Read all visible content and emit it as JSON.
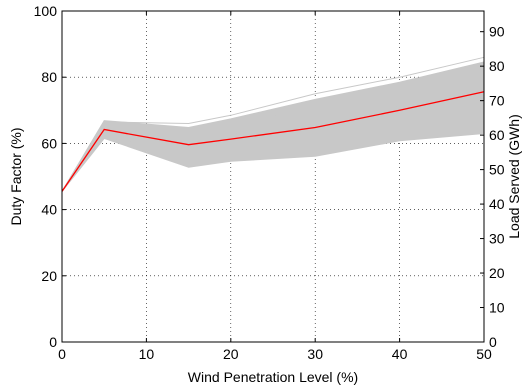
{
  "chart_data": {
    "type": "line",
    "xlabel": "Wind Penetration Level (%)",
    "ylabel": "Duty Factor (%)",
    "y2label": "Load Served (GWh)",
    "xlim": [
      0,
      50
    ],
    "ylim": [
      0,
      100
    ],
    "y2lim": [
      0,
      96
    ],
    "xticks": [
      0,
      10,
      20,
      30,
      40,
      50
    ],
    "yticks": [
      0,
      20,
      40,
      60,
      80,
      100
    ],
    "y2ticks": [
      0,
      10,
      20,
      30,
      40,
      50,
      60,
      70,
      80,
      90
    ],
    "grid": "dotted",
    "x": [
      0,
      5,
      15,
      20,
      30,
      40,
      50
    ],
    "series": [
      {
        "role": "mean",
        "color": "#ff0000",
        "values": [
          45.5,
          64.2,
          59.6,
          61.3,
          64.8,
          70.0,
          75.6
        ]
      },
      {
        "role": "band-upper",
        "color": "#c8c8c8",
        "values": [
          45.5,
          66.9,
          64.8,
          67.4,
          73.3,
          78.5,
          84.6
        ]
      },
      {
        "role": "band-lower",
        "color": "#c8c8c8",
        "values": [
          45.5,
          61.5,
          52.8,
          54.6,
          56.1,
          60.8,
          63.0
        ]
      },
      {
        "role": "sample",
        "color": "#c8c8c8",
        "values": [
          45.5,
          66.5,
          66.0,
          68.5,
          75.0,
          80.0,
          86.0
        ]
      },
      {
        "role": "sample",
        "color": "#c8c8c8",
        "values": [
          45.5,
          62.0,
          54.5,
          56.5,
          57.5,
          62.5,
          64.5
        ]
      },
      {
        "role": "sample",
        "color": "#c8c8c8",
        "values": [
          45.5,
          65.5,
          63.5,
          66.0,
          71.0,
          76.5,
          82.0
        ]
      },
      {
        "role": "sample",
        "color": "#c8c8c8",
        "values": [
          45.5,
          63.0,
          56.0,
          58.0,
          60.5,
          65.0,
          68.0
        ]
      },
      {
        "role": "sample",
        "color": "#c8c8c8",
        "values": [
          45.5,
          64.8,
          61.0,
          63.0,
          67.5,
          72.5,
          78.5
        ]
      },
      {
        "role": "sample",
        "color": "#c8c8c8",
        "values": [
          45.5,
          63.5,
          58.0,
          59.5,
          62.5,
          67.5,
          71.5
        ]
      },
      {
        "role": "sample",
        "color": "#c8c8c8",
        "values": [
          45.5,
          66.0,
          62.5,
          65.5,
          70.5,
          75.0,
          80.0
        ]
      },
      {
        "role": "sample",
        "color": "#c8c8c8",
        "values": [
          45.5,
          62.5,
          55.5,
          57.0,
          59.0,
          63.5,
          66.0
        ]
      },
      {
        "role": "sample",
        "color": "#c8c8c8",
        "values": [
          45.5,
          65.0,
          60.5,
          62.5,
          66.0,
          71.5,
          77.0
        ]
      },
      {
        "role": "sample",
        "color": "#c8c8c8",
        "values": [
          45.5,
          64.0,
          57.5,
          60.5,
          63.5,
          68.5,
          73.0
        ]
      }
    ]
  }
}
